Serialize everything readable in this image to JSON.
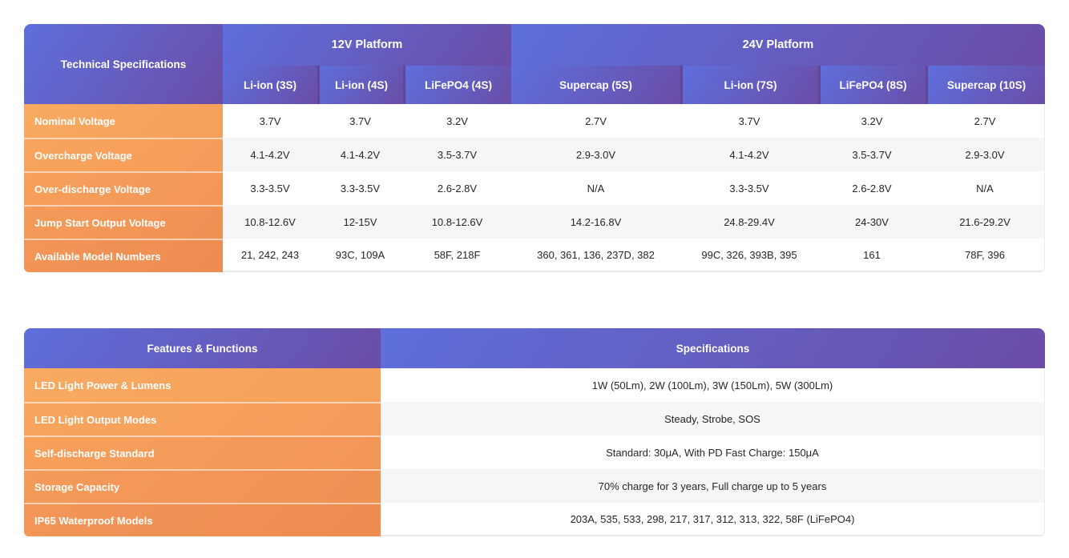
{
  "colors": {
    "header_gradient_start": "#5e6fdc",
    "header_gradient_end": "#6a4da6",
    "label_orange_light": "#f9aa61",
    "label_orange_deep": "#ee8c52",
    "stripe_gray": "#f5f6f8",
    "data_text": "#262626"
  },
  "spec_table": {
    "corner_label": "Technical Specifications",
    "groups": [
      {
        "label": "12V Platform",
        "columns": [
          "Li-ion (3S)",
          "Li-ion (4S)",
          "LiFePO4 (4S)"
        ]
      },
      {
        "label": "24V Platform",
        "columns": [
          "Supercap (5S)",
          "Li-ion (7S)",
          "LiFePO4 (8S)",
          "Supercap (10S)"
        ]
      }
    ],
    "rows": [
      {
        "label": "Nominal Voltage",
        "values": [
          "3.7V",
          "3.7V",
          "3.2V",
          "2.7V",
          "3.7V",
          "3.2V",
          "2.7V"
        ]
      },
      {
        "label": "Overcharge Voltage",
        "values": [
          "4.1-4.2V",
          "4.1-4.2V",
          "3.5-3.7V",
          "2.9-3.0V",
          "4.1-4.2V",
          "3.5-3.7V",
          "2.9-3.0V"
        ]
      },
      {
        "label": "Over-discharge Voltage",
        "values": [
          "3.3-3.5V",
          "3.3-3.5V",
          "2.6-2.8V",
          "N/A",
          "3.3-3.5V",
          "2.6-2.8V",
          "N/A"
        ]
      },
      {
        "label": "Jump Start Output Voltage",
        "values": [
          "10.8-12.6V",
          "12-15V",
          "10.8-12.6V",
          "14.2-16.8V",
          "24.8-29.4V",
          "24-30V",
          "21.6-29.2V"
        ]
      },
      {
        "label": "Available Model Numbers",
        "values": [
          "21, 242, 243",
          "93C, 109A",
          "58F, 218F",
          "360, 361, 136, 237D, 382",
          "99C, 326, 393B, 395",
          "161",
          "78F, 396"
        ]
      }
    ]
  },
  "features_table": {
    "header_left": "Features & Functions",
    "header_right": "Specifications",
    "rows": [
      {
        "label": "LED Light Power & Lumens",
        "value": "1W (50Lm), 2W (100Lm), 3W (150Lm), 5W (300Lm)"
      },
      {
        "label": "LED Light Output Modes",
        "value": "Steady, Strobe, SOS"
      },
      {
        "label": "Self-discharge Standard",
        "value": "Standard: 30μA, With PD Fast Charge: 150μA"
      },
      {
        "label": "Storage Capacity",
        "value": "70% charge for 3 years, Full charge up to 5 years"
      },
      {
        "label": "IP65 Waterproof Models",
        "value": "203A, 535, 533, 298, 217, 317, 312, 313, 322, 58F (LiFePO4)"
      }
    ]
  }
}
